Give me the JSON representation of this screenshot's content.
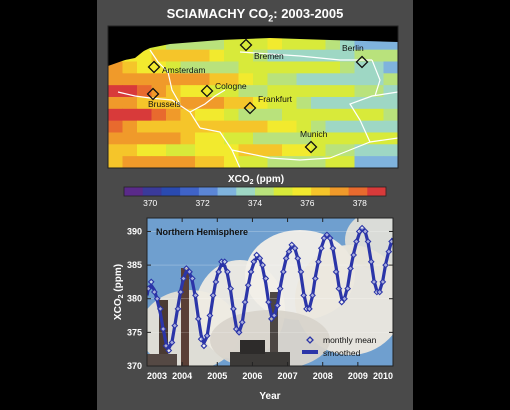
{
  "title": {
    "prefix": "SCIAMACHY CO",
    "sub": "2",
    "suffix": ": 2003-2005"
  },
  "map": {
    "cities": [
      {
        "name": "Amsterdam"
      },
      {
        "name": "Bremen"
      },
      {
        "name": "Berlin"
      },
      {
        "name": "Cologne"
      },
      {
        "name": "Brussels"
      },
      {
        "name": "Frankfurt"
      },
      {
        "name": "Munich"
      }
    ]
  },
  "colorbar": {
    "label_prefix": "XCO",
    "label_sub": "2",
    "label_suffix": " (ppm)",
    "min": 369,
    "max": 379,
    "tick_labels": [
      "370",
      "372",
      "374",
      "376",
      "378"
    ],
    "colors": [
      "#5a2a8a",
      "#3a3a9a",
      "#2a4ab0",
      "#3f63c8",
      "#5b86d6",
      "#7fb3dd",
      "#9ed7c4",
      "#b9e27c",
      "#d8ea3a",
      "#f2ea2e",
      "#f5c52a",
      "#f09a2a",
      "#e86a2e",
      "#d83a3a"
    ]
  },
  "chart_data": {
    "type": "line",
    "annotation": "Northern Hemisphere",
    "xlabel": "Year",
    "ylabel_prefix": "XCO",
    "ylabel_sub": "2",
    "ylabel_suffix": " (ppm)",
    "xlim": [
      2003,
      2010
    ],
    "ylim": [
      370,
      392
    ],
    "x_ticks": [
      2003,
      2004,
      2005,
      2006,
      2007,
      2008,
      2009,
      2010
    ],
    "y_ticks": [
      370,
      375,
      380,
      385,
      390
    ],
    "legend": {
      "position": "bottom-right",
      "entries": [
        "monthly mean",
        "smoothed"
      ]
    },
    "series": [
      {
        "name": "monthly mean",
        "style": "diamond-markers",
        "color": "#2b35a8",
        "x": [
          2003.04,
          2003.12,
          2003.21,
          2003.29,
          2003.38,
          2003.46,
          2003.54,
          2003.62,
          2003.71,
          2003.79,
          2003.88,
          2003.96,
          2004.04,
          2004.12,
          2004.21,
          2004.29,
          2004.38,
          2004.46,
          2004.54,
          2004.62,
          2004.71,
          2004.79,
          2004.88,
          2004.96,
          2005.04,
          2005.12,
          2005.21,
          2005.29,
          2005.38,
          2005.46,
          2005.54,
          2005.62,
          2005.71,
          2005.79,
          2005.88,
          2005.96,
          2006.04,
          2006.12,
          2006.21,
          2006.29,
          2006.38,
          2006.46,
          2006.54,
          2006.62,
          2006.71,
          2006.79,
          2006.88,
          2006.96,
          2007.04,
          2007.12,
          2007.21,
          2007.29,
          2007.38,
          2007.46,
          2007.54,
          2007.62,
          2007.71,
          2007.79,
          2007.88,
          2007.96,
          2008.04,
          2008.12,
          2008.21,
          2008.29,
          2008.38,
          2008.46,
          2008.54,
          2008.62,
          2008.71,
          2008.79,
          2008.88,
          2008.96,
          2009.04,
          2009.12,
          2009.21,
          2009.29,
          2009.38,
          2009.46,
          2009.54,
          2009.62,
          2009.71,
          2009.79,
          2009.88,
          2009.96
        ],
        "y": [
          381.5,
          382.5,
          381.0,
          380.0,
          378.5,
          375.5,
          373.0,
          372.3,
          373.5,
          376.0,
          378.5,
          381.0,
          383.0,
          384.5,
          384.0,
          383.0,
          380.5,
          377.0,
          374.0,
          373.0,
          374.5,
          377.5,
          380.5,
          382.5,
          384.0,
          385.5,
          385.5,
          384.0,
          381.5,
          378.5,
          375.5,
          375.0,
          376.5,
          379.5,
          382.0,
          384.0,
          385.5,
          386.5,
          386.0,
          385.0,
          383.0,
          379.5,
          377.0,
          377.5,
          379.0,
          381.5,
          384.0,
          386.0,
          387.0,
          388.0,
          387.5,
          386.0,
          384.0,
          380.5,
          378.5,
          378.5,
          380.5,
          383.0,
          385.5,
          387.5,
          389.0,
          389.5,
          389.0,
          387.5,
          384.0,
          381.5,
          379.5,
          380.0,
          381.5,
          384.5,
          386.5,
          388.5,
          390.0,
          390.5,
          390.0,
          388.5,
          385.5,
          382.5,
          381.0,
          381.0,
          382.5,
          385.0,
          387.0,
          388.5
        ]
      },
      {
        "name": "smoothed",
        "style": "line",
        "color": "#2b35a8",
        "x": [
          2003.0,
          2003.04,
          2003.12,
          2003.21,
          2003.29,
          2003.38,
          2003.46,
          2003.54,
          2003.62,
          2003.71,
          2003.79,
          2003.88,
          2003.96,
          2004.04,
          2004.12,
          2004.21,
          2004.29,
          2004.38,
          2004.46,
          2004.54,
          2004.62,
          2004.71,
          2004.79,
          2004.88,
          2004.96,
          2005.04,
          2005.12,
          2005.21,
          2005.29,
          2005.38,
          2005.46,
          2005.54,
          2005.62,
          2005.71,
          2005.79,
          2005.88,
          2005.96,
          2006.04,
          2006.12,
          2006.21,
          2006.29,
          2006.38,
          2006.46,
          2006.54,
          2006.62,
          2006.71,
          2006.79,
          2006.88,
          2006.96,
          2007.04,
          2007.12,
          2007.21,
          2007.29,
          2007.38,
          2007.46,
          2007.54,
          2007.62,
          2007.71,
          2007.79,
          2007.88,
          2007.96,
          2008.04,
          2008.12,
          2008.21,
          2008.29,
          2008.38,
          2008.46,
          2008.54,
          2008.62,
          2008.71,
          2008.79,
          2008.88,
          2008.96,
          2009.04,
          2009.12,
          2009.21,
          2009.29,
          2009.38,
          2009.46,
          2009.54,
          2009.62,
          2009.71,
          2009.79,
          2009.88,
          2009.96,
          2010.0
        ],
        "y": [
          380.5,
          381.5,
          382.0,
          381.3,
          379.8,
          377.8,
          375.5,
          373.4,
          372.6,
          373.6,
          376.0,
          378.8,
          381.2,
          383.0,
          384.1,
          383.9,
          382.6,
          380.2,
          377.2,
          374.6,
          373.4,
          374.4,
          377.2,
          380.3,
          382.7,
          384.2,
          385.1,
          384.9,
          383.6,
          381.2,
          378.2,
          375.8,
          375.0,
          376.4,
          379.2,
          382.0,
          384.0,
          385.3,
          386.1,
          385.9,
          384.6,
          382.3,
          379.5,
          377.5,
          377.4,
          379.0,
          381.7,
          384.2,
          386.0,
          387.1,
          387.8,
          387.4,
          386.0,
          383.6,
          380.8,
          378.9,
          378.6,
          380.4,
          383.2,
          385.7,
          387.6,
          388.8,
          389.4,
          389.0,
          387.5,
          384.7,
          381.9,
          380.0,
          380.0,
          381.8,
          384.4,
          386.7,
          388.4,
          389.7,
          390.3,
          390.0,
          388.4,
          385.5,
          382.7,
          381.2,
          381.1,
          382.7,
          385.1,
          387.1,
          388.5,
          389.0
        ]
      }
    ]
  }
}
